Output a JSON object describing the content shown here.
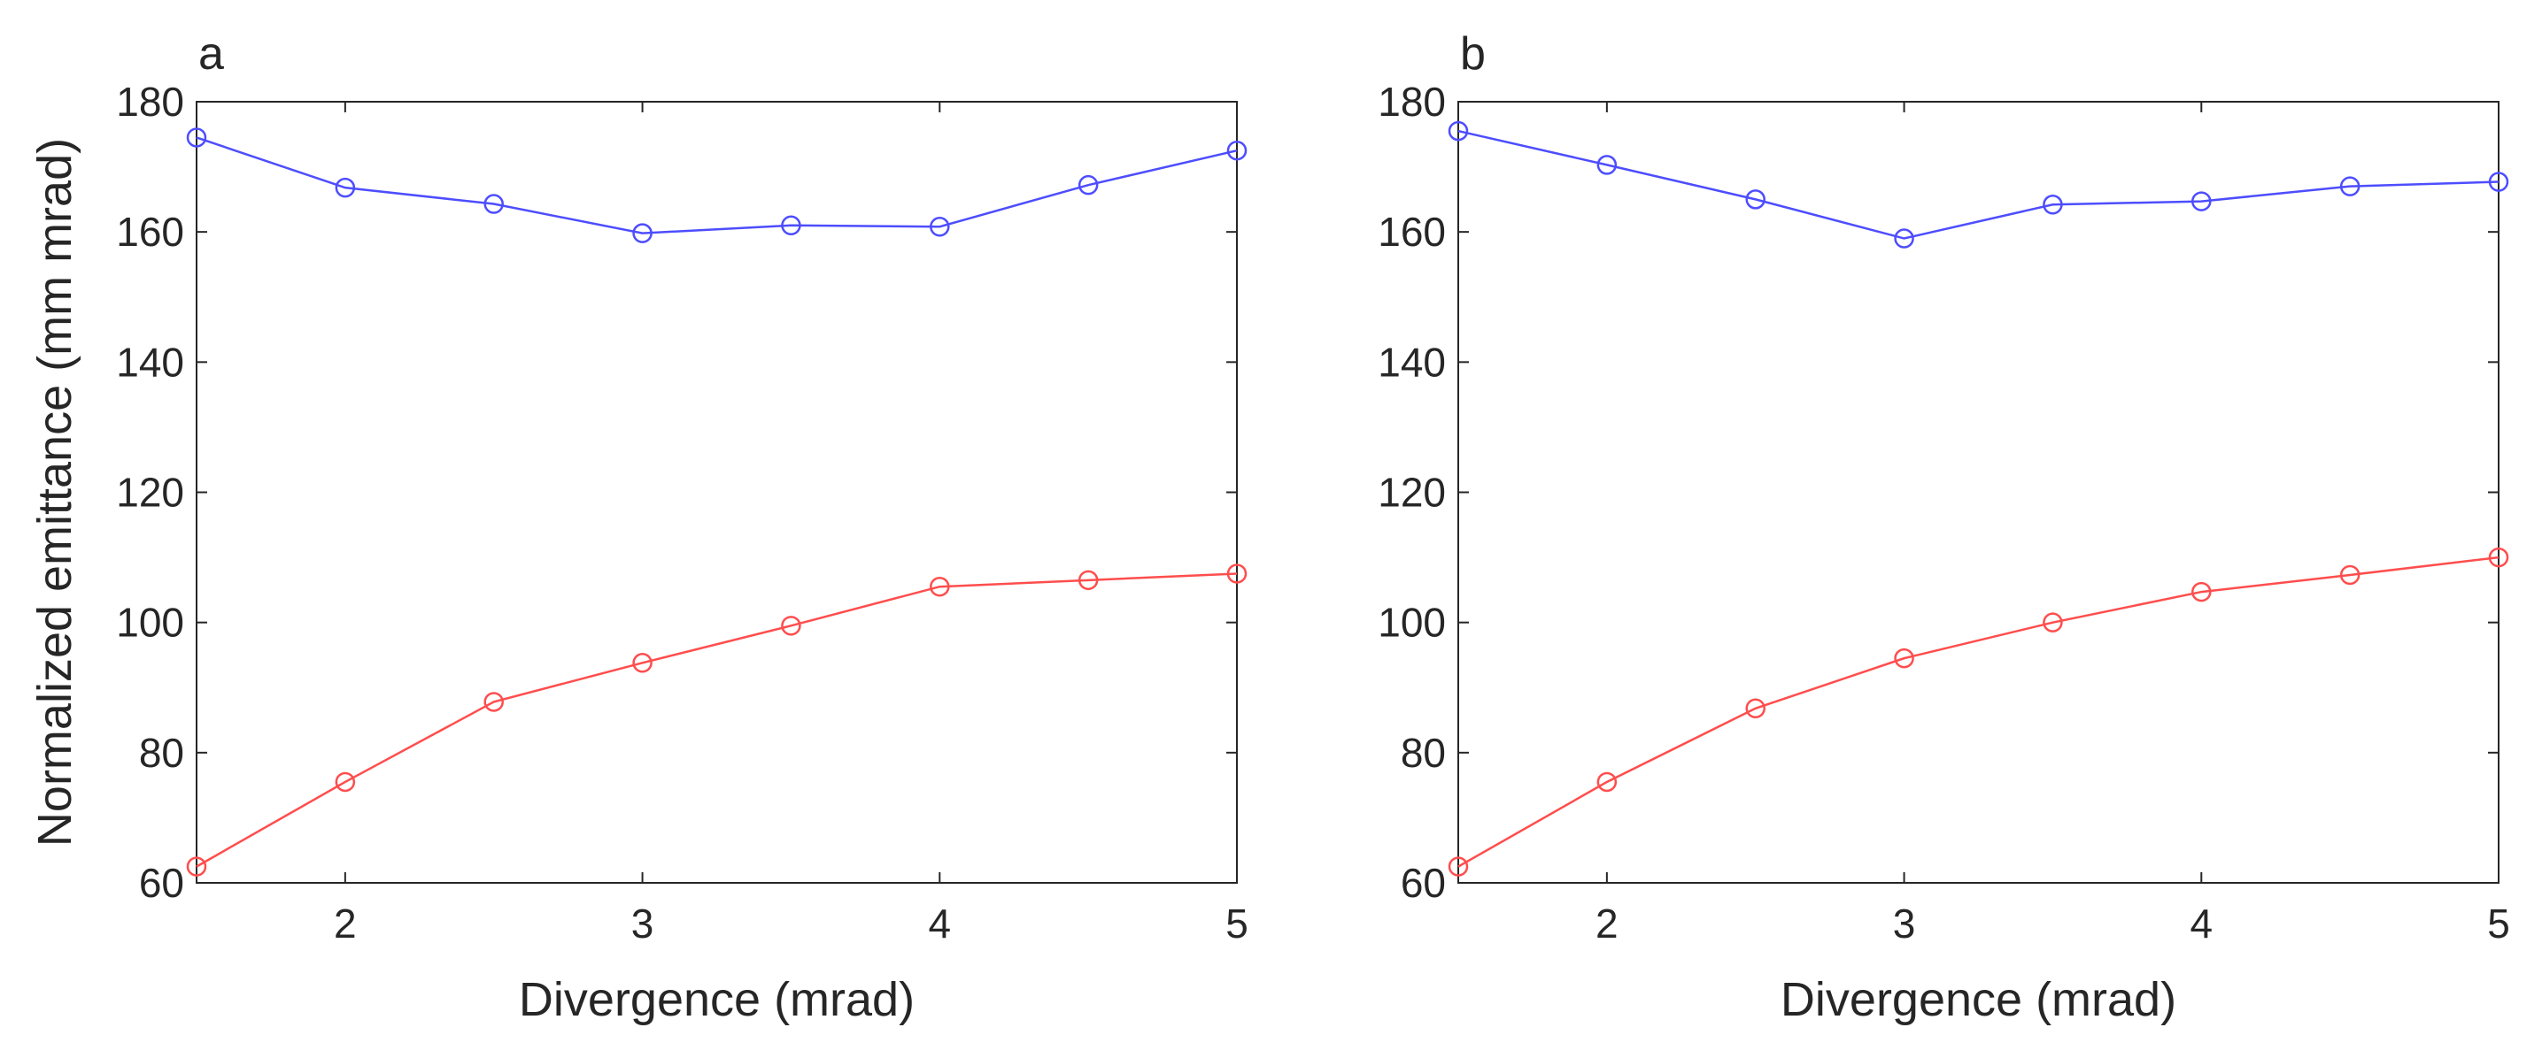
{
  "chart_data": [
    {
      "type": "line",
      "panel_label": "a",
      "xlabel": "Divergence (mrad)",
      "ylabel": "Normalized emittance (mm mrad)",
      "xlim": [
        1.5,
        5
      ],
      "ylim": [
        60,
        180
      ],
      "xticks": [
        2,
        3,
        4,
        5
      ],
      "yticks": [
        60,
        80,
        100,
        120,
        140,
        160,
        180
      ],
      "grid": false,
      "x": [
        1.5,
        2,
        2.5,
        3,
        3.5,
        4,
        4.5,
        5
      ],
      "series": [
        {
          "name": "blue",
          "color": "#4d4dff",
          "values": [
            174.5,
            166.8,
            164.3,
            159.8,
            161.0,
            160.8,
            167.2,
            172.5
          ]
        },
        {
          "name": "red",
          "color": "#ff4d4d",
          "values": [
            62.5,
            75.5,
            87.8,
            93.8,
            99.5,
            105.5,
            106.5,
            107.5
          ]
        }
      ]
    },
    {
      "type": "line",
      "panel_label": "b",
      "xlabel": "Divergence (mrad)",
      "ylabel": "",
      "xlim": [
        1.5,
        5
      ],
      "ylim": [
        60,
        180
      ],
      "xticks": [
        2,
        3,
        4,
        5
      ],
      "yticks": [
        60,
        80,
        100,
        120,
        140,
        160,
        180
      ],
      "grid": false,
      "x": [
        1.5,
        2,
        2.5,
        3,
        3.5,
        4,
        4.5,
        5
      ],
      "series": [
        {
          "name": "blue",
          "color": "#4d4dff",
          "values": [
            175.5,
            170.3,
            165.0,
            159.0,
            164.2,
            164.7,
            167.0,
            167.7
          ]
        },
        {
          "name": "red",
          "color": "#ff4d4d",
          "values": [
            62.5,
            75.5,
            86.8,
            94.5,
            100.0,
            104.7,
            107.3,
            110.0
          ]
        }
      ]
    }
  ]
}
